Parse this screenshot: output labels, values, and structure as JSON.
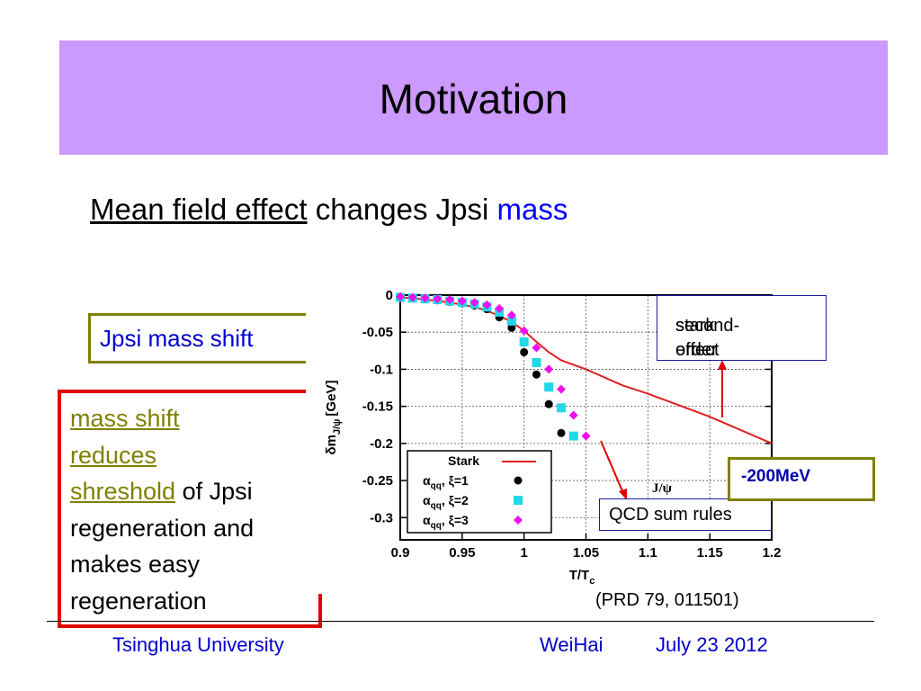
{
  "slide": {
    "title": "Motivation",
    "subtitle": {
      "part1": "Mean field effect",
      "part2": " changes Jpsi ",
      "part3": "mass"
    },
    "shift_box": "Jpsi mass shift",
    "red_box": {
      "line1": "mass shift",
      "line2": "reduces",
      "line3": "shreshold",
      "line3_rest": " of Jpsi",
      "line4": "regeneration and",
      "line5": "makes easy",
      "line6": "regeneration"
    },
    "stark_note": {
      "line1": "second-order",
      "line2": "stark effect"
    },
    "qcd_note": "QCD sum rules",
    "mev_note": "-200MeV",
    "reference": "(PRD 79, 011501)",
    "footer": {
      "left": "Tsinghua University",
      "center": "WeiHai",
      "right": "July 23  2012"
    }
  },
  "chart_data": {
    "type": "scatter",
    "xlabel": "T/T",
    "xlabel_sub": "c",
    "ylabel_main": "δm",
    "ylabel_sub": "J/ψ",
    "ylabel_unit": "[GeV]",
    "xlim": [
      0.9,
      1.2
    ],
    "ylim": [
      -0.33,
      0
    ],
    "x_ticks": [
      "0.9",
      "0.95",
      "1",
      "1.05",
      "1.1",
      "1.15",
      "1.2"
    ],
    "y_ticks": [
      "0",
      "-0.05",
      "-0.1",
      "-0.15",
      "-0.2",
      "-0.25",
      "-0.3"
    ],
    "grid": true,
    "legend_position": "bottom-left",
    "inner_label": "J/ψ",
    "series": [
      {
        "name": "Stark",
        "kind": "line",
        "color": "#e02020",
        "x": [
          0.9,
          0.92,
          0.94,
          0.96,
          0.97,
          0.98,
          0.99,
          1.0,
          1.01,
          1.02,
          1.03,
          1.05,
          1.08,
          1.1,
          1.15,
          1.2
        ],
        "y": [
          -0.003,
          -0.006,
          -0.01,
          -0.016,
          -0.021,
          -0.028,
          -0.036,
          -0.048,
          -0.063,
          -0.077,
          -0.088,
          -0.1,
          -0.122,
          -0.133,
          -0.164,
          -0.2
        ]
      },
      {
        "name": "α_qq, ξ=1",
        "kind": "marker",
        "marker": "circle",
        "color": "#000000",
        "x": [
          0.9,
          0.91,
          0.92,
          0.93,
          0.94,
          0.95,
          0.96,
          0.97,
          0.98,
          0.99,
          1.0,
          1.01,
          1.02,
          1.03
        ],
        "y": [
          -0.003,
          -0.004,
          -0.005,
          -0.007,
          -0.009,
          -0.011,
          -0.014,
          -0.019,
          -0.03,
          -0.044,
          -0.077,
          -0.107,
          -0.147,
          -0.186
        ]
      },
      {
        "name": "α_qq, ξ=2",
        "kind": "marker",
        "marker": "square",
        "color": "#20d8e8",
        "x": [
          0.9,
          0.91,
          0.92,
          0.93,
          0.94,
          0.95,
          0.96,
          0.97,
          0.98,
          0.99,
          1.0,
          1.01,
          1.02,
          1.03,
          1.04
        ],
        "y": [
          -0.003,
          -0.004,
          -0.005,
          -0.006,
          -0.008,
          -0.01,
          -0.012,
          -0.016,
          -0.023,
          -0.035,
          -0.063,
          -0.091,
          -0.124,
          -0.152,
          -0.19
        ]
      },
      {
        "name": "α_qq, ξ=3",
        "kind": "marker",
        "marker": "diamond",
        "color": "#ee10ee",
        "x": [
          0.9,
          0.91,
          0.92,
          0.93,
          0.94,
          0.95,
          0.96,
          0.97,
          0.98,
          0.99,
          1.0,
          1.01,
          1.02,
          1.03,
          1.04,
          1.05
        ],
        "y": [
          -0.002,
          -0.003,
          -0.004,
          -0.005,
          -0.006,
          -0.008,
          -0.01,
          -0.013,
          -0.018,
          -0.027,
          -0.048,
          -0.071,
          -0.1,
          -0.127,
          -0.162,
          -0.19
        ]
      }
    ],
    "legend": [
      {
        "label_alpha": "α",
        "label_sub": "qq",
        "label_rest": ", ξ=1"
      },
      {
        "label_alpha": "α",
        "label_sub": "qq",
        "label_rest": ", ξ=2"
      },
      {
        "label_alpha": "α",
        "label_sub": "qq",
        "label_rest": ", ξ=3"
      }
    ]
  }
}
